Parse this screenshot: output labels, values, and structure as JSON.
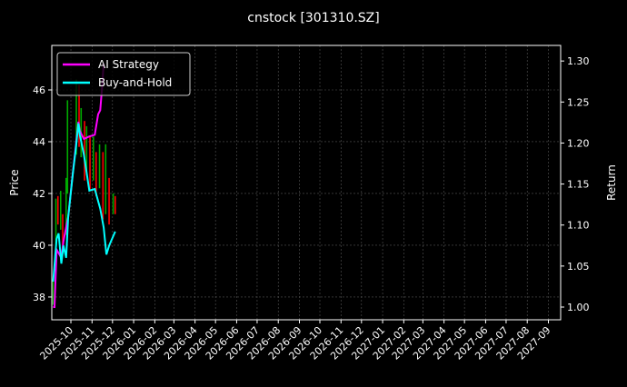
{
  "chart_data": {
    "type": "line",
    "title": "cnstock [301310.SZ]",
    "ylabel_left": "Price",
    "ylabel_right": "Return",
    "xlim": [
      "2025-09-03",
      "2027-09-19"
    ],
    "ylim_left": [
      37.12,
      47.72
    ],
    "ylim_right": [
      0.9845,
      1.319
    ],
    "grid": true,
    "legend_position": "top-left",
    "x_ticks": [
      "2025-10",
      "2025-11",
      "2025-12",
      "2026-01",
      "2026-02",
      "2026-03",
      "2026-04",
      "2026-05",
      "2026-06",
      "2026-07",
      "2026-08",
      "2026-09",
      "2026-10",
      "2026-11",
      "2026-12",
      "2027-01",
      "2027-02",
      "2027-03",
      "2027-04",
      "2027-05",
      "2027-06",
      "2027-07",
      "2027-08",
      "2027-09"
    ],
    "y_ticks_left": [
      38,
      40,
      42,
      44,
      46
    ],
    "y_ticks_right": [
      "1.00",
      "1.05",
      "1.10",
      "1.15",
      "1.20",
      "1.25",
      "1.30"
    ],
    "price_bars": [
      {
        "date": "2025-09-05",
        "open": 37.7,
        "close": 38.6
      },
      {
        "date": "2025-09-09",
        "open": 39.4,
        "close": 41.8
      },
      {
        "date": "2025-09-12",
        "open": 41.9,
        "close": 40.8
      },
      {
        "date": "2025-09-16",
        "open": 40.6,
        "close": 42.1
      },
      {
        "date": "2025-09-19",
        "open": 41.2,
        "close": 40.0
      },
      {
        "date": "2025-09-24",
        "open": 40.4,
        "close": 42.6
      },
      {
        "date": "2025-09-26",
        "open": 42.0,
        "close": 45.6
      },
      {
        "date": "2025-10-09",
        "open": 43.5,
        "close": 46.4
      },
      {
        "date": "2025-10-13",
        "open": 46.2,
        "close": 43.8
      },
      {
        "date": "2025-10-16",
        "open": 43.4,
        "close": 45.3
      },
      {
        "date": "2025-10-21",
        "open": 44.8,
        "close": 42.5
      },
      {
        "date": "2025-10-24",
        "open": 42.7,
        "close": 44.6
      },
      {
        "date": "2025-10-29",
        "open": 44.2,
        "close": 42.1
      },
      {
        "date": "2025-11-03",
        "open": 42.5,
        "close": 44.2
      },
      {
        "date": "2025-11-07",
        "open": 43.6,
        "close": 41.9
      },
      {
        "date": "2025-11-12",
        "open": 42.2,
        "close": 43.9
      },
      {
        "date": "2025-11-17",
        "open": 43.6,
        "close": 41.0
      },
      {
        "date": "2025-11-21",
        "open": 41.2,
        "close": 43.9
      },
      {
        "date": "2025-11-26",
        "open": 42.6,
        "close": 40.8
      },
      {
        "date": "2025-12-02",
        "open": 41.2,
        "close": 42.0
      },
      {
        "date": "2025-12-05",
        "open": 41.9,
        "close": 41.2
      }
    ],
    "series": [
      {
        "name": "AI Strategy",
        "color": "#ff00ff",
        "x": [
          "2025-09-05",
          "2025-09-07",
          "2025-09-10",
          "2025-09-17",
          "2025-09-20",
          "2025-09-27",
          "2025-10-04",
          "2025-10-08",
          "2025-10-12",
          "2025-10-14",
          "2025-10-20",
          "2025-10-28",
          "2025-11-05",
          "2025-11-10",
          "2025-11-13",
          "2025-11-16",
          "2025-11-18"
        ],
        "values": [
          1.0,
          1.0,
          1.07,
          1.06,
          1.08,
          1.11,
          1.165,
          1.195,
          1.226,
          1.215,
          1.205,
          1.208,
          1.21,
          1.235,
          1.24,
          1.27,
          1.297
        ]
      },
      {
        "name": "Buy-and-Hold",
        "color": "#00ffff",
        "x": [
          "2025-09-05",
          "2025-09-10",
          "2025-09-13",
          "2025-09-17",
          "2025-09-20",
          "2025-09-24",
          "2025-09-27",
          "2025-10-04",
          "2025-10-08",
          "2025-10-12",
          "2025-10-14",
          "2025-10-20",
          "2025-10-28",
          "2025-11-05",
          "2025-11-13",
          "2025-11-18",
          "2025-11-22",
          "2025-11-26",
          "2025-12-05"
        ],
        "values": [
          1.031,
          1.083,
          1.09,
          1.053,
          1.075,
          1.06,
          1.109,
          1.164,
          1.192,
          1.224,
          1.21,
          1.186,
          1.142,
          1.144,
          1.12,
          1.097,
          1.064,
          1.075,
          1.092
        ]
      }
    ],
    "up_color": "#00aa00",
    "down_color": "#ff0000"
  }
}
